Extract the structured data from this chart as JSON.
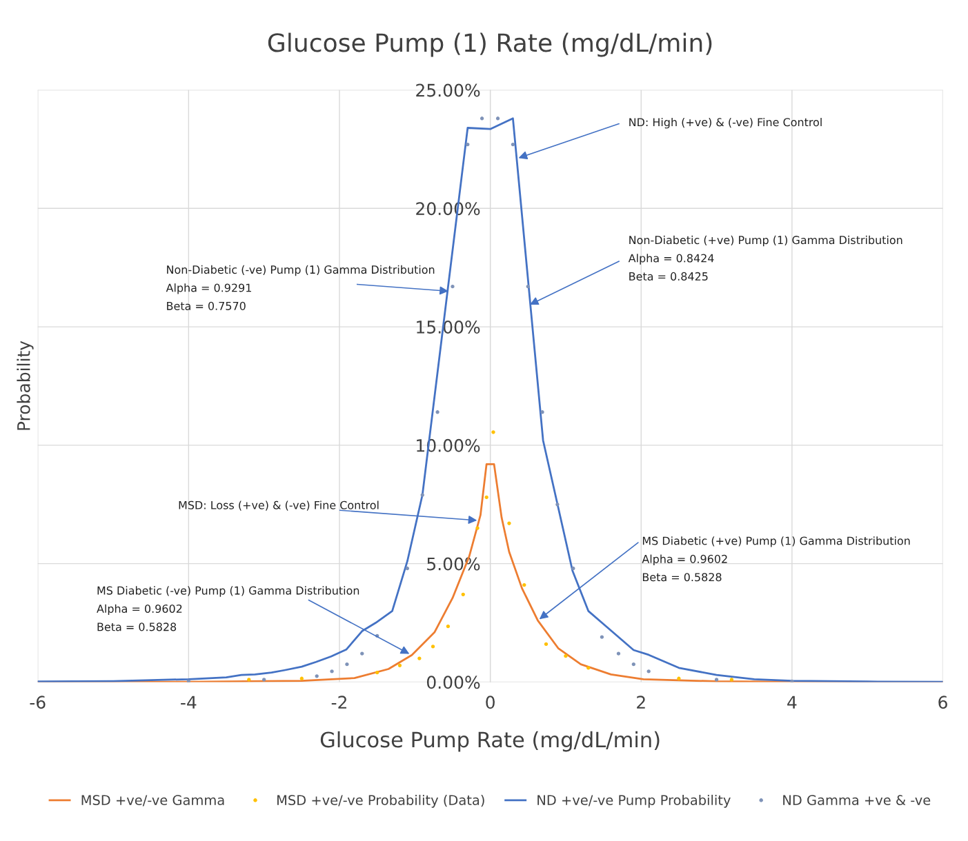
{
  "chart_data": {
    "type": "line",
    "title": "Glucose Pump (1) Rate (mg/dL/min)",
    "xlabel": "Glucose Pump Rate (mg/dL/min)",
    "ylabel": "Probability",
    "xlim": [
      -6,
      6
    ],
    "xticks": [
      -6,
      -4,
      -2,
      0,
      2,
      4,
      6
    ],
    "ylim": [
      0,
      25
    ],
    "yticks": [
      {
        "value": 0,
        "label": "0.00%"
      },
      {
        "value": 5,
        "label": "5.00%"
      },
      {
        "value": 10,
        "label": "10.00%"
      },
      {
        "value": 15,
        "label": "15.00%"
      },
      {
        "value": 20,
        "label": "20.00%"
      },
      {
        "value": 25,
        "label": "25.00%"
      }
    ],
    "grid": true,
    "legend": "bottom",
    "series": [
      {
        "name": "MSD +ve/-ve Gamma",
        "marker": "none",
        "color": "#ed7d31",
        "x": [
          -6,
          -4,
          -2.5,
          -1.8,
          -1.35,
          -1.04,
          -0.74,
          -0.5,
          -0.28,
          -0.13,
          -0.05,
          0.05,
          0.15,
          0.25,
          0.42,
          0.63,
          0.9,
          1.2,
          1.6,
          2.03,
          3,
          4,
          6
        ],
        "values": [
          0,
          0.01,
          0.05,
          0.17,
          0.55,
          1.14,
          2.1,
          3.55,
          5.3,
          7.05,
          9.2,
          9.2,
          6.95,
          5.5,
          3.96,
          2.6,
          1.43,
          0.75,
          0.32,
          0.12,
          0.03,
          0.01,
          0
        ]
      },
      {
        "name": "MSD +ve/-ve Probability (Data)",
        "type": "scatter",
        "marker": "circle",
        "color": "#ffc000",
        "x": [
          -3.2,
          -2.5,
          -1.5,
          -1.2,
          -0.94,
          -0.76,
          -0.56,
          -0.36,
          -0.17,
          -0.05,
          0.04,
          0.25,
          0.45,
          0.74,
          1.0,
          1.3,
          2.5,
          3.2
        ],
        "values": [
          0.1,
          0.15,
          0.4,
          0.7,
          1.0,
          1.5,
          2.35,
          3.7,
          6.5,
          7.8,
          10.55,
          6.7,
          4.1,
          1.6,
          1.1,
          0.6,
          0.15,
          0.1
        ]
      },
      {
        "name": "ND +ve/-ve Pump Probability",
        "marker": "none",
        "color": "#4472c4",
        "x": [
          -6,
          -5,
          -4,
          -3.5,
          -3.3,
          -3.12,
          -2.9,
          -2.73,
          -2.5,
          -2.31,
          -2.11,
          -1.91,
          -1.7,
          -1.52,
          -1.3,
          -1.1,
          -0.9,
          -0.3,
          0,
          0.3,
          0.7,
          1.09,
          1.3,
          1.5,
          1.9,
          2.1,
          2.5,
          3,
          3.5,
          4,
          5,
          6
        ],
        "values": [
          0.02,
          0.04,
          0.12,
          0.2,
          0.3,
          0.32,
          0.4,
          0.5,
          0.65,
          0.85,
          1.08,
          1.37,
          2.15,
          2.5,
          3.0,
          5.1,
          7.9,
          23.4,
          23.35,
          23.8,
          10.2,
          4.7,
          3.0,
          2.45,
          1.35,
          1.15,
          0.6,
          0.3,
          0.12,
          0.05,
          0.02,
          0.01
        ]
      },
      {
        "name": "ND Gamma +ve & -ve",
        "type": "scatter",
        "marker": "circle",
        "color": "#7f93b8",
        "x": [
          -4,
          -3,
          -2.3,
          -2.1,
          -1.9,
          -1.7,
          -1.5,
          -1.1,
          -0.9,
          -0.7,
          -0.5,
          -0.3,
          -0.11,
          0.1,
          0.3,
          0.5,
          0.69,
          0.89,
          1.1,
          1.48,
          1.7,
          1.9,
          2.1,
          3,
          4
        ],
        "values": [
          0.03,
          0.1,
          0.25,
          0.45,
          0.75,
          1.2,
          1.95,
          4.8,
          7.9,
          11.4,
          16.7,
          22.7,
          23.8,
          23.8,
          22.7,
          16.7,
          11.4,
          7.5,
          4.8,
          1.9,
          1.2,
          0.75,
          0.45,
          0.1,
          0.03
        ]
      }
    ],
    "annotations": [
      {
        "text": "ND: High (+ve) & (-ve) Fine Control",
        "x": 0.35,
        "y": 22.1
      },
      {
        "text": "Non-Diabetic (+ve) Pump (1) Gamma Distribution\nAlpha = 0.8424\nBeta = 0.8425",
        "x": 0.5,
        "y": 15.9
      },
      {
        "text": "Non-Diabetic (-ve) Pump (1) Gamma Distribution\nAlpha = 0.9291\nBeta = 0.7570",
        "x": -0.53,
        "y": 16.5
      },
      {
        "text": "MSD: Loss (+ve) & (-ve) Fine Control",
        "x": -0.15,
        "y": 6.82
      },
      {
        "text": "MS Diabetic (+ve) Pump (1) Gamma Distribution\nAlpha = 0.9602\nBeta = 0.5828",
        "x": 0.63,
        "y": 2.6
      },
      {
        "text": "MS Diabetic (-ve) Pump (1) Gamma Distribution\nAlpha = 0.9602\nBeta = 0.5828",
        "x": -1.05,
        "y": 1.15
      }
    ]
  }
}
